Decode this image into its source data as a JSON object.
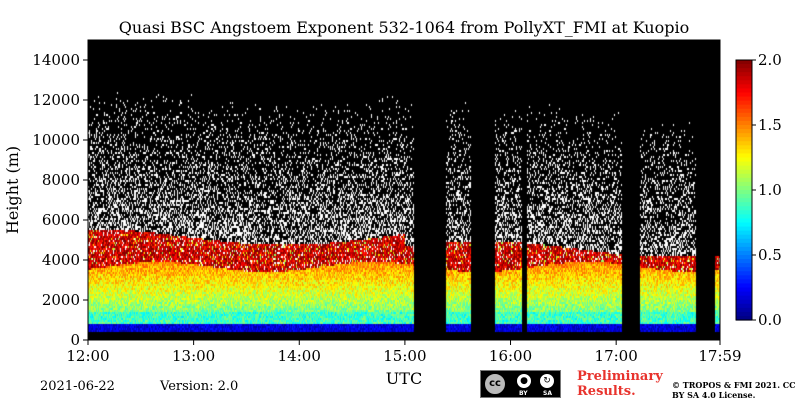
{
  "chart_data": {
    "type": "heatmap",
    "title": "Quasi BSC Angstoem Exponent 532-1064 from PollyXT_FMI at Kuopio",
    "xlabel": "UTC",
    "ylabel": "Height (m)",
    "x_ticks": [
      "12:00",
      "13:00",
      "14:00",
      "15:00",
      "16:00",
      "17:00",
      "17:59"
    ],
    "x_tick_hours": [
      12.0,
      13.0,
      14.0,
      15.0,
      16.0,
      17.0,
      17.983
    ],
    "xlim_hours": [
      12.0,
      17.983
    ],
    "y_ticks": [
      0,
      2000,
      4000,
      6000,
      8000,
      10000,
      12000,
      14000
    ],
    "ylim": [
      0,
      15000
    ],
    "colorbar": {
      "ticks": [
        "0.0",
        "0.5",
        "1.0",
        "1.5",
        "2.0"
      ],
      "range": [
        0.0,
        2.0
      ],
      "colormap": "jet"
    },
    "no_data_color": "#000000",
    "gap_intervals_hours": [
      [
        15.08,
        15.38
      ],
      [
        15.62,
        15.85
      ],
      [
        16.1,
        16.15
      ],
      [
        17.05,
        17.22
      ],
      [
        17.75,
        17.93
      ]
    ],
    "near_field_mask_top_m": 650,
    "aerosol_layer": {
      "boundary_layer_alpha": 1.0,
      "boundary_layer_top_m": 3700,
      "elevated_layer_alpha": 1.9,
      "elevated_layer_range_m": [
        3600,
        5200
      ]
    }
  },
  "footer": {
    "date": "2021-06-22",
    "version": "Version: 2.0",
    "cc_text": "cc",
    "by_label": "BY",
    "sa_label": "SA",
    "preliminary": "Preliminary Results.",
    "copyright": "© TROPOS & FMI 2021. CC BY SA 4.0 License."
  }
}
